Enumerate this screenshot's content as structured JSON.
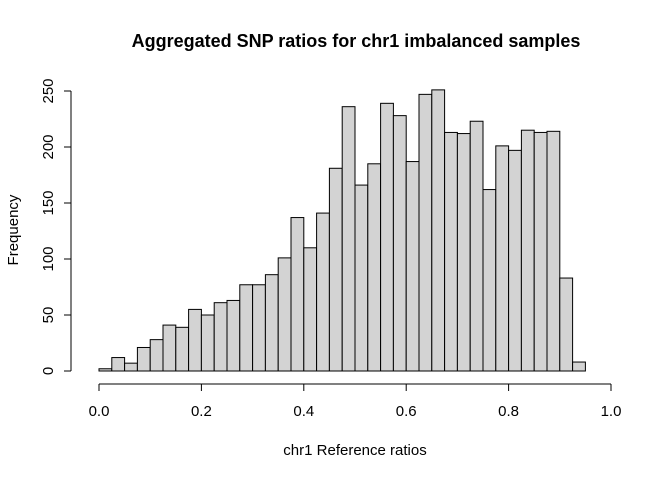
{
  "chart_data": {
    "type": "bar",
    "title": "Aggregated SNP ratios for chr1 imbalanced samples",
    "xlabel": "chr1 Reference ratios",
    "ylabel": "Frequency",
    "bin_width": 0.025,
    "bins_start": 0.0,
    "values": [
      2,
      12,
      7,
      21,
      28,
      41,
      39,
      55,
      50,
      61,
      63,
      77,
      77,
      86,
      101,
      137,
      110,
      141,
      181,
      236,
      166,
      185,
      239,
      228,
      187,
      247,
      251,
      213,
      212,
      223,
      162,
      201,
      197,
      215,
      213,
      214,
      83,
      8,
      0,
      0
    ],
    "xlim": [
      0,
      1
    ],
    "ylim": [
      0,
      250
    ],
    "x_ticks": [
      "0.0",
      "0.2",
      "0.4",
      "0.6",
      "0.8",
      "1.0"
    ],
    "y_ticks": [
      "0",
      "50",
      "100",
      "150",
      "200",
      "250"
    ],
    "colors": {
      "bar_fill": "#d3d3d3",
      "bar_stroke": "#000000"
    },
    "grid": false
  }
}
